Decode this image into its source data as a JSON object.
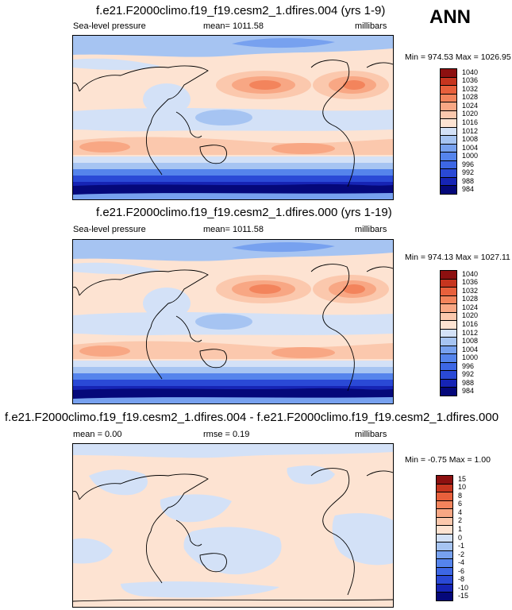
{
  "season": "ANN",
  "panels": [
    {
      "title": "f.e21.F2000climo.f19_f19.cesm2_1.dfires.004 (yrs 1-9)",
      "left_label": "Sea-level pressure",
      "center_label": "mean= 1011.58",
      "right_label": "millibars",
      "minmax": "Min = 974.53 Max = 1026.95",
      "colorbar_labels": [
        "1040",
        "1036",
        "1032",
        "1028",
        "1024",
        "1020",
        "1016",
        "1012",
        "1008",
        "1004",
        "1000",
        "996",
        "992",
        "988",
        "984"
      ]
    },
    {
      "title": "f.e21.F2000climo.f19_f19.cesm2_1.dfires.000 (yrs 1-19)",
      "left_label": "Sea-level pressure",
      "center_label": "mean= 1011.58",
      "right_label": "millibars",
      "minmax": "Min = 974.13 Max = 1027.11",
      "colorbar_labels": [
        "1040",
        "1036",
        "1032",
        "1028",
        "1024",
        "1020",
        "1016",
        "1012",
        "1008",
        "1004",
        "1000",
        "996",
        "992",
        "988",
        "984"
      ]
    },
    {
      "title": "f.e21.F2000climo.f19_f19.cesm2_1.dfires.004 - f.e21.F2000climo.f19_f19.cesm2_1.dfires.000",
      "left_label": "mean =   0.00",
      "center_label": "rmse =   0.19",
      "right_label": "millibars",
      "minmax": "Min =  -0.75 Max =   1.00",
      "colorbar_labels": [
        "15",
        "10",
        "8",
        "6",
        "4",
        "2",
        "1",
        "0",
        "-1",
        "-2",
        "-4",
        "-6",
        "-8",
        "-10",
        "-15"
      ]
    }
  ],
  "chart_data": [
    {
      "type": "heatmap",
      "title": "f.e21.F2000climo.f19_f19.cesm2_1.dfires.004 (yrs 1-9)",
      "variable": "Sea-level pressure",
      "units": "millibars",
      "mean": 1011.58,
      "min": 974.53,
      "max": 1026.95,
      "contour_levels": [
        984,
        988,
        992,
        996,
        1000,
        1004,
        1008,
        1012,
        1016,
        1020,
        1024,
        1028,
        1032,
        1036,
        1040
      ],
      "colors": [
        "#05087a",
        "#1624b5",
        "#2a49d6",
        "#3d67e5",
        "#5584ec",
        "#77a1ef",
        "#a6c4f2",
        "#d3e1f7",
        "#fde3d2",
        "#fbc8ad",
        "#f8a784",
        "#f3845c",
        "#e8603c",
        "#c6351f",
        "#8d1010"
      ]
    },
    {
      "type": "heatmap",
      "title": "f.e21.F2000climo.f19_f19.cesm2_1.dfires.000 (yrs 1-19)",
      "variable": "Sea-level pressure",
      "units": "millibars",
      "mean": 1011.58,
      "min": 974.13,
      "max": 1027.11,
      "contour_levels": [
        984,
        988,
        992,
        996,
        1000,
        1004,
        1008,
        1012,
        1016,
        1020,
        1024,
        1028,
        1032,
        1036,
        1040
      ],
      "colors": [
        "#05087a",
        "#1624b5",
        "#2a49d6",
        "#3d67e5",
        "#5584ec",
        "#77a1ef",
        "#a6c4f2",
        "#d3e1f7",
        "#fde3d2",
        "#fbc8ad",
        "#f8a784",
        "#f3845c",
        "#e8603c",
        "#c6351f",
        "#8d1010"
      ]
    },
    {
      "type": "heatmap",
      "title": "f.e21.F2000climo.f19_f19.cesm2_1.dfires.004 - f.e21.F2000climo.f19_f19.cesm2_1.dfires.000",
      "units": "millibars",
      "mean": 0.0,
      "rmse": 0.19,
      "min": -0.75,
      "max": 1.0,
      "contour_levels": [
        -15,
        -10,
        -8,
        -6,
        -4,
        -2,
        -1,
        0,
        1,
        2,
        4,
        6,
        8,
        10,
        15
      ],
      "colors": [
        "#05087a",
        "#1624b5",
        "#2a49d6",
        "#3d67e5",
        "#5584ec",
        "#77a1ef",
        "#a6c4f2",
        "#d3e1f7",
        "#fde3d2",
        "#fbc8ad",
        "#f8a784",
        "#f3845c",
        "#e8603c",
        "#c6351f",
        "#8d1010"
      ]
    }
  ]
}
